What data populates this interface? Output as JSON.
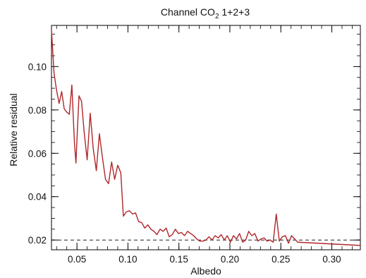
{
  "chart_data": {
    "type": "line",
    "title": "Channel CO",
    "title_subscript": "2",
    "title_suffix": " 1+2+3",
    "xlabel": "Albedo",
    "ylabel": "Relative residual",
    "xlim": [
      0.025,
      0.328
    ],
    "ylim": [
      0.0155,
      0.119
    ],
    "x_ticks": [
      0.05,
      0.1,
      0.15,
      0.2,
      0.25,
      0.3
    ],
    "x_tick_labels": [
      "0.05",
      "0.10",
      "0.15",
      "0.20",
      "0.25",
      "0.30"
    ],
    "y_ticks": [
      0.02,
      0.04,
      0.06,
      0.08,
      0.1
    ],
    "y_tick_labels": [
      "0.02",
      "0.04",
      "0.06",
      "0.08",
      "0.10"
    ],
    "x_minor_step": 0.01,
    "y_minor_step": 0.005,
    "grid": false,
    "reference_line": {
      "y": 0.02,
      "style": "dashed"
    },
    "series": [
      {
        "color": "#b0262a",
        "points": [
          [
            0.025,
            0.117
          ],
          [
            0.0275,
            0.097
          ],
          [
            0.03,
            0.089
          ],
          [
            0.0325,
            0.083
          ],
          [
            0.035,
            0.0885
          ],
          [
            0.0375,
            0.0805
          ],
          [
            0.04,
            0.079
          ],
          [
            0.0425,
            0.078
          ],
          [
            0.045,
            0.0915
          ],
          [
            0.0475,
            0.065
          ],
          [
            0.049,
            0.0555
          ],
          [
            0.0505,
            0.0715
          ],
          [
            0.052,
            0.0865
          ],
          [
            0.0545,
            0.084
          ],
          [
            0.057,
            0.07
          ],
          [
            0.06,
            0.057
          ],
          [
            0.063,
            0.0785
          ],
          [
            0.066,
            0.062
          ],
          [
            0.069,
            0.052
          ],
          [
            0.072,
            0.069
          ],
          [
            0.075,
            0.058
          ],
          [
            0.078,
            0.048
          ],
          [
            0.081,
            0.046
          ],
          [
            0.084,
            0.056
          ],
          [
            0.087,
            0.048
          ],
          [
            0.09,
            0.0545
          ],
          [
            0.093,
            0.051
          ],
          [
            0.0955,
            0.031
          ],
          [
            0.0985,
            0.033
          ],
          [
            0.1015,
            0.0335
          ],
          [
            0.1045,
            0.032
          ],
          [
            0.1075,
            0.0325
          ],
          [
            0.1105,
            0.0285
          ],
          [
            0.1135,
            0.028
          ],
          [
            0.1165,
            0.0255
          ],
          [
            0.1195,
            0.027
          ],
          [
            0.1225,
            0.025
          ],
          [
            0.1255,
            0.024
          ],
          [
            0.1285,
            0.0225
          ],
          [
            0.1315,
            0.025
          ],
          [
            0.1345,
            0.024
          ],
          [
            0.1375,
            0.0255
          ],
          [
            0.1405,
            0.0215
          ],
          [
            0.1435,
            0.0225
          ],
          [
            0.1465,
            0.025
          ],
          [
            0.1495,
            0.023
          ],
          [
            0.1525,
            0.0235
          ],
          [
            0.1555,
            0.022
          ],
          [
            0.1585,
            0.024
          ],
          [
            0.1615,
            0.023
          ],
          [
            0.1645,
            0.022
          ],
          [
            0.1675,
            0.0205
          ],
          [
            0.1705,
            0.0195
          ],
          [
            0.1735,
            0.0195
          ],
          [
            0.1765,
            0.02
          ],
          [
            0.1795,
            0.0215
          ],
          [
            0.1825,
            0.02
          ],
          [
            0.1855,
            0.022
          ],
          [
            0.1885,
            0.021
          ],
          [
            0.1915,
            0.0225
          ],
          [
            0.1945,
            0.02
          ],
          [
            0.1975,
            0.022
          ],
          [
            0.2005,
            0.019
          ],
          [
            0.2035,
            0.022
          ],
          [
            0.2065,
            0.0205
          ],
          [
            0.2095,
            0.023
          ],
          [
            0.2125,
            0.019
          ],
          [
            0.2155,
            0.02
          ],
          [
            0.2185,
            0.024
          ],
          [
            0.2215,
            0.022
          ],
          [
            0.2245,
            0.023
          ],
          [
            0.2275,
            0.0195
          ],
          [
            0.2305,
            0.0205
          ],
          [
            0.2335,
            0.021
          ],
          [
            0.2365,
            0.0195
          ],
          [
            0.2395,
            0.02
          ],
          [
            0.2425,
            0.019
          ],
          [
            0.2455,
            0.032
          ],
          [
            0.2485,
            0.0195
          ],
          [
            0.2515,
            0.0215
          ],
          [
            0.2545,
            0.022
          ],
          [
            0.2575,
            0.0185
          ],
          [
            0.2605,
            0.022
          ],
          [
            0.2635,
            0.0205
          ],
          [
            0.2665,
            0.019
          ],
          [
            0.328,
            0.0175
          ]
        ]
      }
    ]
  }
}
